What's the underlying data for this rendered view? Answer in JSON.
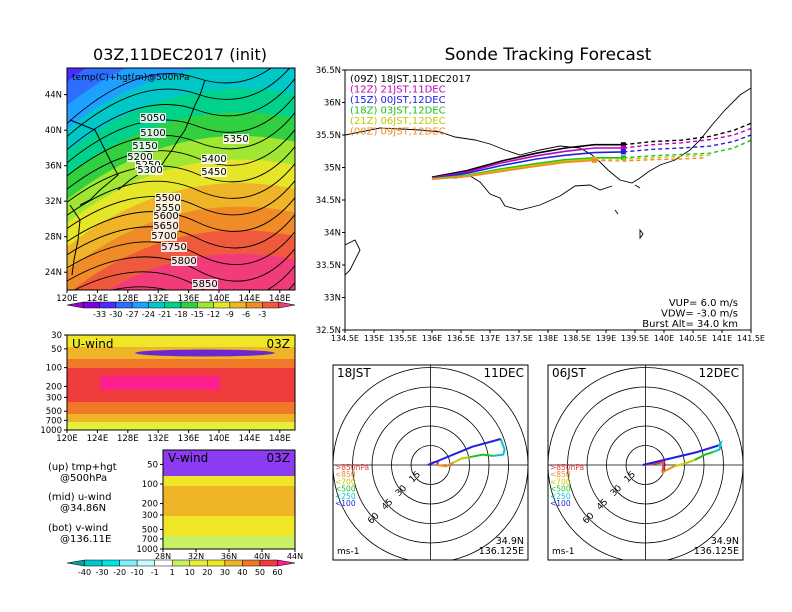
{
  "chart_data": [
    {
      "type": "heatmap",
      "title": "03Z,11DEC2017 (init)",
      "annotation": "temp(C)+hgt(m)@500hPa",
      "x_tick_labels": [
        "120E",
        "124E",
        "128E",
        "132E",
        "136E",
        "140E",
        "144E",
        "148E"
      ],
      "y_tick_labels": [
        "24N",
        "28N",
        "32N",
        "36N",
        "40N",
        "44N"
      ],
      "xlim": [
        120,
        150
      ],
      "ylim": [
        22,
        47
      ],
      "colorbar_labels": [
        "-33",
        "-30",
        "-27",
        "-24",
        "-21",
        "-18",
        "-15",
        "-12",
        "-9",
        "-6",
        "-3"
      ],
      "colors": [
        "#a000c8",
        "#7a00e0",
        "#4a2cff",
        "#2f6dff",
        "#1ea0ff",
        "#00c8c8",
        "#00d28c",
        "#30d040",
        "#a0e632",
        "#e6e628",
        "#f0b428",
        "#f08c28",
        "#f05a3c",
        "#f03c78"
      ],
      "contour_labels": [
        "5050",
        "5100",
        "5150",
        "5200",
        "5250",
        "5300",
        "5350",
        "5400",
        "5450",
        "5500",
        "5550",
        "5600",
        "5650",
        "5700",
        "5750",
        "5800",
        "5850"
      ]
    },
    {
      "type": "heatmap",
      "label": "U-wind",
      "time": "03Z",
      "x_tick_labels": [
        "120E",
        "124E",
        "128E",
        "132E",
        "136E",
        "140E",
        "144E",
        "148E"
      ],
      "y_tick_labels": [
        "30",
        "50",
        "100",
        "200",
        "300",
        "500",
        "700",
        "1000"
      ]
    },
    {
      "type": "heatmap",
      "label": "V-wind",
      "time": "03Z",
      "x_tick_labels": [
        "28N",
        "32N",
        "36N",
        "40N",
        "44N"
      ],
      "y_tick_labels": [
        "50",
        "100",
        "200",
        "300",
        "500",
        "700",
        "1000"
      ],
      "colorbar_labels": [
        "-40",
        "-30",
        "-20",
        "-10",
        "-1",
        "1",
        "10",
        "20",
        "30",
        "40",
        "50",
        "60"
      ],
      "colors": [
        "#00a0a0",
        "#00c8c8",
        "#00e6e6",
        "#80f0ff",
        "#c8faff",
        "#ffffff",
        "#c8f064",
        "#e6f03c",
        "#f0e628",
        "#f0b428",
        "#f07828",
        "#f03c3c",
        "#ff1e96"
      ]
    },
    {
      "type": "line",
      "title": "Sonde Tracking Forecast",
      "xlabel": "",
      "ylabel": "",
      "x_tick_labels": [
        "134.5E",
        "135E",
        "135.5E",
        "136E",
        "136.5E",
        "137E",
        "137.5E",
        "138E",
        "138.5E",
        "139E",
        "139.5E",
        "140E",
        "140.5E",
        "141E",
        "141.5E"
      ],
      "y_tick_labels": [
        "32.5N",
        "33N",
        "33.5N",
        "34N",
        "34.5N",
        "35N",
        "35.5N",
        "36N",
        "36.5N"
      ],
      "xlim": [
        134.5,
        141.5
      ],
      "ylim": [
        32.5,
        36.5
      ],
      "legend_position": "top-left",
      "series": [
        {
          "name": "(09Z)  18JST,11DEC2017",
          "color": "#000000",
          "x": [
            136.0,
            136.6,
            137.2,
            137.8,
            138.3,
            138.8,
            139.3,
            139.8,
            140.3,
            140.8,
            141.2,
            141.5
          ],
          "y": [
            34.85,
            34.95,
            35.1,
            35.22,
            35.3,
            35.35,
            35.35,
            35.4,
            35.42,
            35.48,
            35.57,
            35.68
          ]
        },
        {
          "name": "(12Z)  21JST,11DEC",
          "color": "#c000c0",
          "x": [
            136.0,
            136.6,
            137.2,
            137.8,
            138.3,
            138.8,
            139.3,
            139.8,
            140.3,
            140.8,
            141.2,
            141.5
          ],
          "y": [
            34.84,
            34.93,
            35.07,
            35.18,
            35.25,
            35.3,
            35.3,
            35.35,
            35.38,
            35.43,
            35.5,
            35.6
          ]
        },
        {
          "name": "(15Z)  00JST,12DEC",
          "color": "#2020e0",
          "x": [
            136.0,
            136.6,
            137.2,
            137.8,
            138.3,
            138.8,
            139.3,
            139.8,
            140.3,
            140.8,
            141.2,
            141.5
          ],
          "y": [
            34.83,
            34.91,
            35.03,
            35.13,
            35.19,
            35.23,
            35.24,
            35.28,
            35.3,
            35.33,
            35.4,
            35.5
          ]
        },
        {
          "name": "(18Z)  03JST,12DEC",
          "color": "#20c020",
          "x": [
            136.0,
            136.6,
            137.2,
            137.8,
            138.3,
            138.8,
            139.3,
            139.8,
            140.3,
            140.8,
            141.2,
            141.5
          ],
          "y": [
            34.83,
            34.88,
            34.98,
            35.06,
            35.12,
            35.15,
            35.15,
            35.18,
            35.2,
            35.22,
            35.3,
            35.42
          ]
        },
        {
          "name": "(21Z)  06JST,12DEC",
          "color": "#c8c800",
          "x": [
            136.0,
            136.6,
            137.2,
            137.8,
            138.3,
            138.8,
            139.3,
            139.8,
            140.3,
            140.8
          ],
          "y": [
            34.82,
            34.87,
            34.96,
            35.04,
            35.1,
            35.13,
            35.13,
            35.15,
            35.17,
            35.19
          ]
        },
        {
          "name": "(00Z)  09JST,12DEC",
          "color": "#f08c28",
          "x": [
            136.0,
            136.6,
            137.2,
            137.8,
            138.3,
            138.8,
            139.3,
            139.8,
            140.3,
            140.7
          ],
          "y": [
            34.82,
            34.86,
            34.94,
            35.02,
            35.08,
            35.11,
            35.1,
            35.12,
            35.13,
            35.15
          ]
        }
      ],
      "parameters": [
        "VUP=  6.0  m/s",
        "VDW= -3.0  m/s",
        "Burst Alt= 34.0  km"
      ]
    },
    {
      "type": "scatter",
      "label_left": "18JST",
      "label_right": "11DEC",
      "position_text": [
        "34.9N",
        "136.125E"
      ],
      "unit": "ms-1",
      "ring_labels": [
        "15",
        "30",
        "45",
        "60"
      ],
      "legend": [
        ">850hPa",
        "<850",
        "<700",
        "<500",
        "<250",
        "<100"
      ],
      "legend_colors": [
        "#f03c3c",
        "#f08c28",
        "#c8c800",
        "#20c020",
        "#00c8c8",
        "#2020e0"
      ],
      "hodograph": [
        {
          "color": "#f03c3c",
          "u": [
            -2,
            2,
            6,
            5
          ],
          "v": [
            0,
            2,
            3,
            0
          ]
        },
        {
          "color": "#f08c28",
          "u": [
            5,
            12,
            18
          ],
          "v": [
            0,
            -1,
            2
          ]
        },
        {
          "color": "#c8c800",
          "u": [
            18,
            24,
            30
          ],
          "v": [
            2,
            5,
            6
          ]
        },
        {
          "color": "#20c020",
          "u": [
            30,
            40,
            48
          ],
          "v": [
            6,
            8,
            7
          ]
        },
        {
          "color": "#00c8c8",
          "u": [
            48,
            56,
            57,
            54
          ],
          "v": [
            7,
            8,
            12,
            20
          ]
        },
        {
          "color": "#2020e0",
          "u": [
            54,
            32,
            -2
          ],
          "v": [
            20,
            14,
            0
          ]
        }
      ]
    },
    {
      "type": "scatter",
      "label_left": "06JST",
      "label_right": "12DEC",
      "position_text": [
        "34.9N",
        "136.125E"
      ],
      "unit": "ms-1",
      "ring_labels": [
        "15",
        "30",
        "45",
        "60"
      ],
      "legend": [
        ">850hPa",
        "<850",
        "<700",
        "<500",
        "<250",
        "<100"
      ],
      "legend_colors": [
        "#f03c3c",
        "#f08c28",
        "#c8c800",
        "#20c020",
        "#00c8c8",
        "#2020e0"
      ],
      "hodograph": [
        {
          "color": "#f03c3c",
          "u": [
            -2,
            6,
            14,
            13
          ],
          "v": [
            0,
            1,
            2,
            -6
          ]
        },
        {
          "color": "#f08c28",
          "u": [
            13,
            16,
            22
          ],
          "v": [
            -6,
            -4,
            -1
          ]
        },
        {
          "color": "#c8c800",
          "u": [
            22,
            30,
            38
          ],
          "v": [
            -1,
            1,
            4
          ]
        },
        {
          "color": "#20c020",
          "u": [
            38,
            46,
            52
          ],
          "v": [
            4,
            8,
            10
          ]
        },
        {
          "color": "#00c8c8",
          "u": [
            52,
            57,
            58,
            56
          ],
          "v": [
            10,
            12,
            17,
            15
          ]
        },
        {
          "color": "#2020e0",
          "u": [
            56,
            40,
            -2
          ],
          "v": [
            15,
            10,
            0
          ]
        }
      ]
    }
  ],
  "side_notes": [
    "(up) tmp+hgt",
    "@500hPa",
    "(mid) u-wind",
    "@34.86N",
    "(bot) v-wind",
    "@136.11E"
  ]
}
